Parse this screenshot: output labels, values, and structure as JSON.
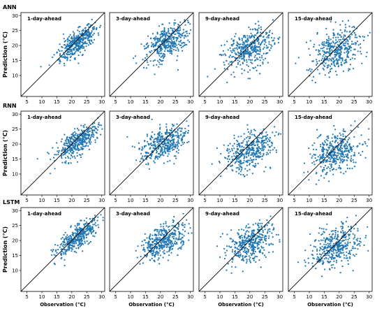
{
  "figure": {
    "row_labels": [
      "ANN",
      "RNN",
      "LSTM"
    ],
    "panel_titles": [
      "1-day-ahead",
      "3-day-ahead",
      "9-day-ahead",
      "15-day-ahead"
    ],
    "ylabel": "Prediction (°C)",
    "xlabel": "Observation (°C)",
    "x_ticks": [
      "5",
      "10",
      "15",
      "20",
      "25",
      "30"
    ],
    "y_ticks": [
      "10",
      "15",
      "20",
      "25",
      "30"
    ],
    "colors": {
      "points": "#1f77b4",
      "diagonal": "#000000",
      "frame": "#000000"
    }
  },
  "chart_data": [
    {
      "type": "scatter",
      "row": "ANN",
      "title": "1-day-ahead",
      "xlim": [
        3,
        31
      ],
      "ylim": [
        3,
        31
      ],
      "points_approx": 400,
      "center": [
        22,
        21
      ],
      "spread_along": 4.2,
      "spread_across": 1.6,
      "slope": 0.85,
      "diagonal": "y = x"
    },
    {
      "type": "scatter",
      "row": "ANN",
      "title": "3-day-ahead",
      "xlim": [
        3,
        31
      ],
      "ylim": [
        3,
        31
      ],
      "points_approx": 400,
      "center": [
        22,
        21
      ],
      "spread_along": 4.2,
      "spread_across": 2.4,
      "slope": 0.75,
      "diagonal": "y = x"
    },
    {
      "type": "scatter",
      "row": "ANN",
      "title": "9-day-ahead",
      "xlim": [
        3,
        31
      ],
      "ylim": [
        3,
        31
      ],
      "points_approx": 400,
      "center": [
        20,
        19
      ],
      "spread_along": 4.5,
      "spread_across": 2.8,
      "slope": 0.7,
      "diagonal": "y = x"
    },
    {
      "type": "scatter",
      "row": "ANN",
      "title": "15-day-ahead",
      "xlim": [
        3,
        31
      ],
      "ylim": [
        3,
        31
      ],
      "points_approx": 400,
      "center": [
        19,
        18
      ],
      "spread_along": 4.5,
      "spread_across": 3.2,
      "slope": 0.65,
      "diagonal": "y = x"
    },
    {
      "type": "scatter",
      "row": "RNN",
      "title": "1-day-ahead",
      "xlim": [
        3,
        31
      ],
      "ylim": [
        3,
        31
      ],
      "points_approx": 400,
      "center": [
        22,
        21
      ],
      "spread_along": 4.2,
      "spread_across": 1.8,
      "slope": 0.8,
      "diagonal": "y = x"
    },
    {
      "type": "scatter",
      "row": "RNN",
      "title": "3-day-ahead",
      "xlim": [
        3,
        31
      ],
      "ylim": [
        3,
        31
      ],
      "points_approx": 400,
      "center": [
        21,
        20
      ],
      "spread_along": 4.3,
      "spread_across": 2.5,
      "slope": 0.7,
      "diagonal": "y = x"
    },
    {
      "type": "scatter",
      "row": "RNN",
      "title": "9-day-ahead",
      "xlim": [
        3,
        31
      ],
      "ylim": [
        3,
        31
      ],
      "points_approx": 400,
      "center": [
        20,
        18
      ],
      "spread_along": 4.5,
      "spread_across": 2.8,
      "slope": 0.6,
      "diagonal": "y = x"
    },
    {
      "type": "scatter",
      "row": "RNN",
      "title": "15-day-ahead",
      "xlim": [
        3,
        31
      ],
      "ylim": [
        3,
        31
      ],
      "points_approx": 400,
      "center": [
        19,
        17
      ],
      "spread_along": 4.5,
      "spread_across": 3.0,
      "slope": 0.55,
      "diagonal": "y = x"
    },
    {
      "type": "scatter",
      "row": "LSTM",
      "title": "1-day-ahead",
      "xlim": [
        3,
        31
      ],
      "ylim": [
        3,
        31
      ],
      "points_approx": 400,
      "center": [
        22,
        21
      ],
      "spread_along": 4.2,
      "spread_across": 1.6,
      "slope": 0.85,
      "diagonal": "y = x"
    },
    {
      "type": "scatter",
      "row": "LSTM",
      "title": "3-day-ahead",
      "xlim": [
        3,
        31
      ],
      "ylim": [
        3,
        31
      ],
      "points_approx": 400,
      "center": [
        21,
        20
      ],
      "spread_along": 4.3,
      "spread_across": 2.3,
      "slope": 0.75,
      "diagonal": "y = x"
    },
    {
      "type": "scatter",
      "row": "LSTM",
      "title": "9-day-ahead",
      "xlim": [
        3,
        31
      ],
      "ylim": [
        3,
        31
      ],
      "points_approx": 400,
      "center": [
        20,
        19
      ],
      "spread_along": 4.5,
      "spread_across": 2.6,
      "slope": 0.7,
      "diagonal": "y = x"
    },
    {
      "type": "scatter",
      "row": "LSTM",
      "title": "15-day-ahead",
      "xlim": [
        3,
        31
      ],
      "ylim": [
        3,
        31
      ],
      "points_approx": 400,
      "center": [
        19,
        18
      ],
      "spread_along": 4.5,
      "spread_across": 2.9,
      "slope": 0.65,
      "diagonal": "y = x"
    }
  ]
}
